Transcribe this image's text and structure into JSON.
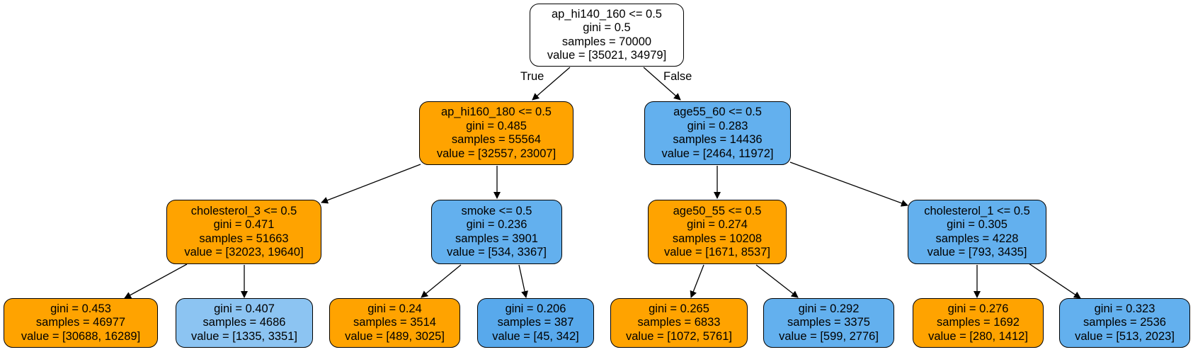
{
  "edge_labels": {
    "true": "True",
    "false": "False"
  },
  "colors": {
    "orange": "#ffa300",
    "blue": "#63b0ee",
    "light_blue": "#8cc4f2",
    "mid_blue": "#58a9ec",
    "white": "#ffffff"
  },
  "nodes": {
    "root": {
      "lines": [
        "ap_hi140_160 <= 0.5",
        "gini = 0.5",
        "samples = 70000",
        "value = [35021, 34979]"
      ]
    },
    "n1": {
      "lines": [
        "ap_hi160_180 <= 0.5",
        "gini = 0.485",
        "samples = 55564",
        "value = [32557, 23007]"
      ]
    },
    "n2": {
      "lines": [
        "age55_60 <= 0.5",
        "gini = 0.283",
        "samples = 14436",
        "value = [2464, 11972]"
      ]
    },
    "n3": {
      "lines": [
        "cholesterol_3 <= 0.5",
        "gini = 0.471",
        "samples = 51663",
        "value = [32023, 19640]"
      ]
    },
    "n4": {
      "lines": [
        "smoke <= 0.5",
        "gini = 0.236",
        "samples = 3901",
        "value = [534, 3367]"
      ]
    },
    "n5": {
      "lines": [
        "age50_55 <= 0.5",
        "gini = 0.274",
        "samples = 10208",
        "value = [1671, 8537]"
      ]
    },
    "n6": {
      "lines": [
        "cholesterol_1 <= 0.5",
        "gini = 0.305",
        "samples = 4228",
        "value = [793, 3435]"
      ]
    },
    "l1": {
      "lines": [
        "gini = 0.453",
        "samples = 46977",
        "value = [30688, 16289]"
      ]
    },
    "l2": {
      "lines": [
        "gini = 0.407",
        "samples = 4686",
        "value = [1335, 3351]"
      ]
    },
    "l3": {
      "lines": [
        "gini = 0.24",
        "samples = 3514",
        "value = [489, 3025]"
      ]
    },
    "l4": {
      "lines": [
        "gini = 0.206",
        "samples = 387",
        "value = [45, 342]"
      ]
    },
    "l5": {
      "lines": [
        "gini = 0.265",
        "samples = 6833",
        "value = [1072, 5761]"
      ]
    },
    "l6": {
      "lines": [
        "gini = 0.292",
        "samples = 3375",
        "value = [599, 2776]"
      ]
    },
    "l7": {
      "lines": [
        "gini = 0.276",
        "samples = 1692",
        "value = [280, 1412]"
      ]
    },
    "l8": {
      "lines": [
        "gini = 0.323",
        "samples = 2536",
        "value = [513, 2023]"
      ]
    }
  }
}
